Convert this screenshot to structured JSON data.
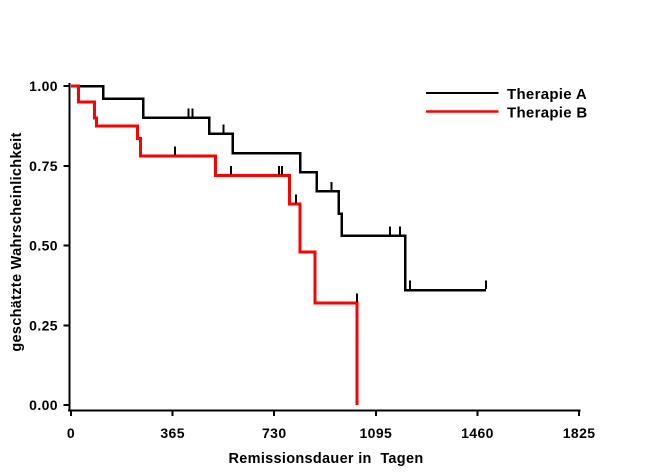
{
  "chart_data": {
    "type": "line",
    "subtype": "kaplan-meier-step",
    "title": "",
    "xlabel": "Remissionsdauer in  Tagen",
    "ylabel": "geschätzte Wahrscheinlichkeit",
    "xlim": [
      0,
      1825
    ],
    "ylim": [
      0.0,
      1.0
    ],
    "xticks": [
      0,
      365,
      730,
      1095,
      1460,
      1825
    ],
    "xtick_labels": [
      "0",
      "365",
      "730",
      "1095",
      "1460",
      "1825"
    ],
    "yticks": [
      0.0,
      0.25,
      0.5,
      0.75,
      1.0
    ],
    "ytick_labels": [
      "0.00",
      "0.25",
      "0.50",
      "0.75",
      "1.00"
    ],
    "grid": false,
    "background": "#ffffff",
    "axis_color": "#000000",
    "legend": {
      "position": "top-right",
      "entries": [
        "Therapie A",
        "Therapie B"
      ]
    },
    "series": [
      {
        "name": "Therapie A",
        "color": "#000000",
        "line_width": 2.5,
        "points": [
          [
            0,
            1.0
          ],
          [
            115,
            0.96
          ],
          [
            260,
            0.9
          ],
          [
            497,
            0.85
          ],
          [
            580,
            0.79
          ],
          [
            823,
            0.73
          ],
          [
            882,
            0.67
          ],
          [
            961,
            0.6
          ],
          [
            972,
            0.53
          ],
          [
            1200,
            0.36
          ]
        ],
        "end_day": 1490,
        "censor_marks": [
          [
            422,
            0.9
          ],
          [
            437,
            0.9
          ],
          [
            548,
            0.85
          ],
          [
            936,
            0.67
          ],
          [
            1146,
            0.53
          ],
          [
            1182,
            0.53
          ],
          [
            1218,
            0.36
          ],
          [
            1490,
            0.36
          ]
        ],
        "censor_color": "#000000"
      },
      {
        "name": "Therapie B",
        "color": "#ff0000",
        "line_width": 3,
        "points": [
          [
            0,
            1.0
          ],
          [
            27,
            0.95
          ],
          [
            84,
            0.9
          ],
          [
            92,
            0.875
          ],
          [
            239,
            0.835
          ],
          [
            250,
            0.78
          ],
          [
            519,
            0.72
          ],
          [
            785,
            0.63
          ],
          [
            823,
            0.48
          ],
          [
            877,
            0.32
          ],
          [
            1028,
            0.0
          ]
        ],
        "end_day": 1028,
        "censor_marks": [
          [
            374,
            0.78
          ],
          [
            575,
            0.72
          ],
          [
            747,
            0.72
          ],
          [
            758,
            0.72
          ],
          [
            808,
            0.63
          ],
          [
            1028,
            0.32
          ]
        ],
        "censor_color": "#000000"
      }
    ]
  }
}
